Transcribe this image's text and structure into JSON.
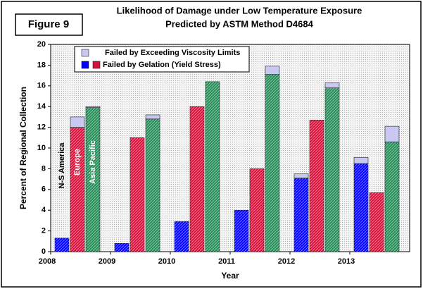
{
  "figure_label": "Figure 9",
  "chart_data": {
    "type": "grouped-stacked-bar",
    "title": [
      "Likelihood of Damage under Low Temperature Exposure",
      "Predicted by ASTM Method D4684"
    ],
    "y_label": "Percent of Regional Collection",
    "x_label": "Year",
    "categories": [
      "2008",
      "2009",
      "2010",
      "2011",
      "2012",
      "2013"
    ],
    "ylim": [
      0,
      20
    ],
    "yticks": [
      0,
      2,
      4,
      6,
      8,
      10,
      12,
      14,
      16,
      18,
      20
    ],
    "grid": false,
    "stack_names": [
      "Failed by Gelation (Yield Stress)",
      "Failed by Exceeding Viscosity Limits"
    ],
    "viscosity_color": "#c8c8f0",
    "series": [
      {
        "name": "N-S America",
        "color": "#0000ff",
        "gelation": [
          1.3,
          0.8,
          2.9,
          4.0,
          7.1,
          8.5
        ],
        "viscosity": [
          0,
          0,
          0,
          0,
          0.4,
          0.6
        ]
      },
      {
        "name": "Europe",
        "color": "#d4143c",
        "gelation": [
          12.0,
          11.0,
          14.0,
          8.0,
          12.7,
          5.7
        ],
        "viscosity": [
          1.0,
          0,
          0,
          0,
          0,
          0
        ]
      },
      {
        "name": "Asia Pacific",
        "color": "#2a8c5a",
        "gelation": [
          13.9,
          12.8,
          16.4,
          17.1,
          15.8,
          10.6
        ],
        "viscosity": [
          0.1,
          0.4,
          0,
          0.8,
          0.5,
          1.5
        ]
      }
    ]
  }
}
